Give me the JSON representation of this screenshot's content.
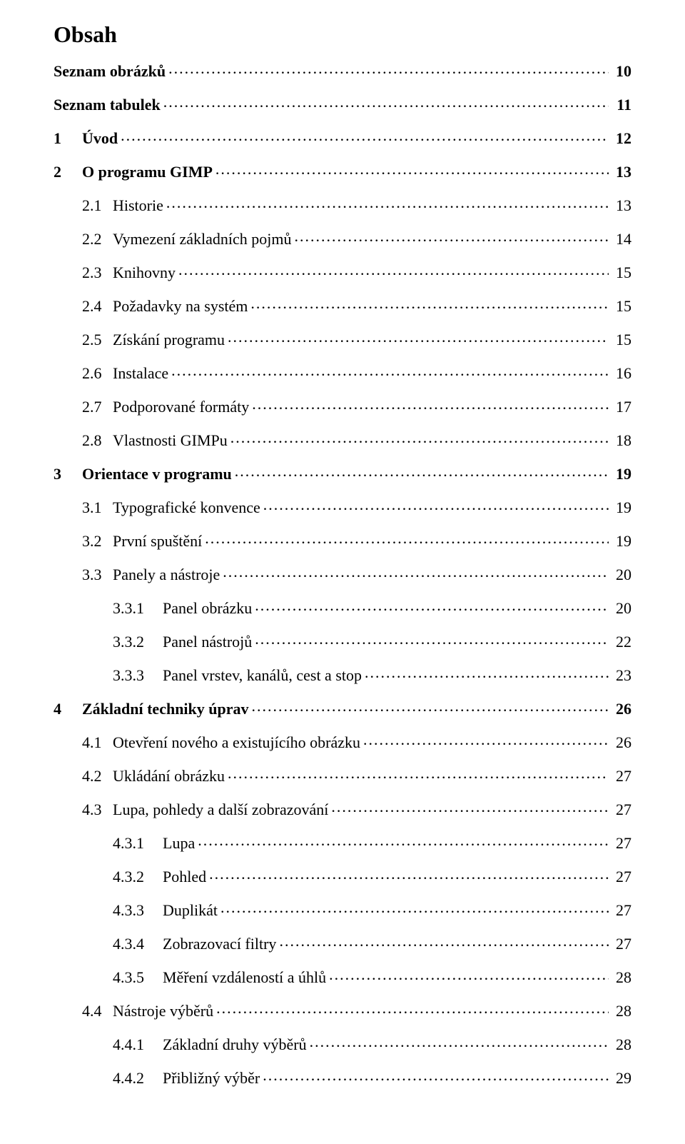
{
  "title": "Obsah",
  "font": {
    "family": "Times New Roman",
    "title_size_pt": 24,
    "body_size_pt": 16
  },
  "colors": {
    "background": "#ffffff",
    "text": "#000000"
  },
  "toc": [
    {
      "num": "",
      "label": "Seznam obrázků",
      "page": "10",
      "level": 0,
      "bold": true
    },
    {
      "num": "",
      "label": "Seznam tabulek",
      "page": "11",
      "level": 0,
      "bold": true
    },
    {
      "num": "1",
      "label": "Úvod",
      "page": "12",
      "level": 1,
      "bold": true
    },
    {
      "num": "2",
      "label": "O programu GIMP",
      "page": "13",
      "level": 1,
      "bold": true
    },
    {
      "num": "2.1",
      "label": "Historie",
      "page": "13",
      "level": 2,
      "bold": false
    },
    {
      "num": "2.2",
      "label": "Vymezení základních pojmů",
      "page": "14",
      "level": 2,
      "bold": false
    },
    {
      "num": "2.3",
      "label": "Knihovny",
      "page": "15",
      "level": 2,
      "bold": false
    },
    {
      "num": "2.4",
      "label": "Požadavky na systém",
      "page": "15",
      "level": 2,
      "bold": false
    },
    {
      "num": "2.5",
      "label": "Získání programu",
      "page": "15",
      "level": 2,
      "bold": false
    },
    {
      "num": "2.6",
      "label": "Instalace",
      "page": "16",
      "level": 2,
      "bold": false
    },
    {
      "num": "2.7",
      "label": "Podporované formáty",
      "page": "17",
      "level": 2,
      "bold": false
    },
    {
      "num": "2.8",
      "label": "Vlastnosti GIMPu",
      "page": "18",
      "level": 2,
      "bold": false
    },
    {
      "num": "3",
      "label": "Orientace v programu",
      "page": "19",
      "level": 1,
      "bold": true
    },
    {
      "num": "3.1",
      "label": "Typografické konvence",
      "page": "19",
      "level": 2,
      "bold": false
    },
    {
      "num": "3.2",
      "label": "První spuštění",
      "page": "19",
      "level": 2,
      "bold": false
    },
    {
      "num": "3.3",
      "label": "Panely a nástroje",
      "page": "20",
      "level": 2,
      "bold": false
    },
    {
      "num": "3.3.1",
      "label": "Panel obrázku",
      "page": "20",
      "level": 3,
      "bold": false
    },
    {
      "num": "3.3.2",
      "label": "Panel nástrojů",
      "page": "22",
      "level": 3,
      "bold": false
    },
    {
      "num": "3.3.3",
      "label": "Panel vrstev, kanálů, cest a stop",
      "page": "23",
      "level": 3,
      "bold": false
    },
    {
      "num": "4",
      "label": "Základní techniky úprav",
      "page": "26",
      "level": 1,
      "bold": true
    },
    {
      "num": "4.1",
      "label": "Otevření nového a existujícího obrázku",
      "page": "26",
      "level": 2,
      "bold": false
    },
    {
      "num": "4.2",
      "label": "Ukládání obrázku",
      "page": "27",
      "level": 2,
      "bold": false
    },
    {
      "num": "4.3",
      "label": "Lupa, pohledy a další zobrazování",
      "page": "27",
      "level": 2,
      "bold": false
    },
    {
      "num": "4.3.1",
      "label": "Lupa",
      "page": "27",
      "level": 3,
      "bold": false
    },
    {
      "num": "4.3.2",
      "label": "Pohled",
      "page": "27",
      "level": 3,
      "bold": false
    },
    {
      "num": "4.3.3",
      "label": "Duplikát",
      "page": "27",
      "level": 3,
      "bold": false
    },
    {
      "num": "4.3.4",
      "label": "Zobrazovací filtry",
      "page": "27",
      "level": 3,
      "bold": false
    },
    {
      "num": "4.3.5",
      "label": "Měření vzdáleností a úhlů",
      "page": "28",
      "level": 3,
      "bold": false
    },
    {
      "num": "4.4",
      "label": "Nástroje výběrů",
      "page": "28",
      "level": 2,
      "bold": false
    },
    {
      "num": "4.4.1",
      "label": "Základní druhy výběrů",
      "page": "28",
      "level": 3,
      "bold": false
    },
    {
      "num": "4.4.2",
      "label": "Přibližný výběr",
      "page": "29",
      "level": 3,
      "bold": false
    }
  ]
}
